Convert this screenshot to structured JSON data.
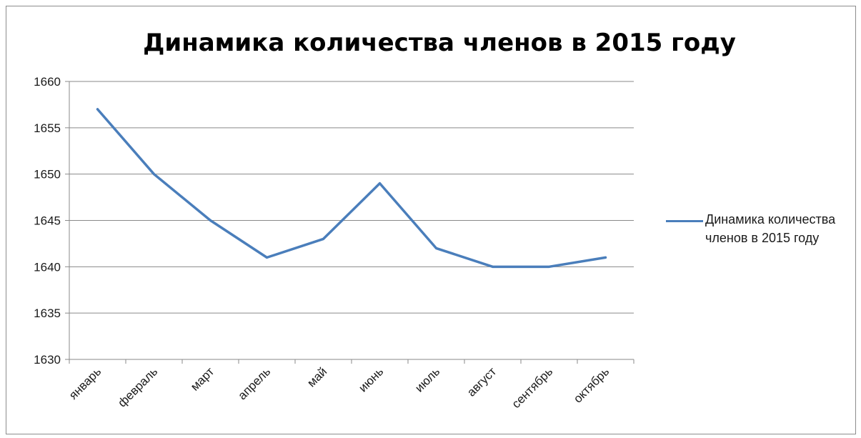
{
  "chart_data": {
    "type": "line",
    "title": "Динамика количества членов в 2015 году",
    "xlabel": "",
    "ylabel": "",
    "categories": [
      "январь",
      "февраль",
      "март",
      "апрель",
      "май",
      "июнь",
      "июль",
      "август",
      "сентябрь",
      "октябрь"
    ],
    "series": [
      {
        "name": "Динамика количества членов в 2015 году",
        "values": [
          1657,
          1650,
          1645,
          1641,
          1643,
          1649,
          1642,
          1640,
          1640,
          1641
        ],
        "color": "#4a7ebb"
      }
    ],
    "ylim": [
      1630,
      1660
    ],
    "yticks": [
      1630,
      1635,
      1640,
      1645,
      1650,
      1655,
      1660
    ],
    "grid": "horizontal",
    "legend": "right"
  }
}
